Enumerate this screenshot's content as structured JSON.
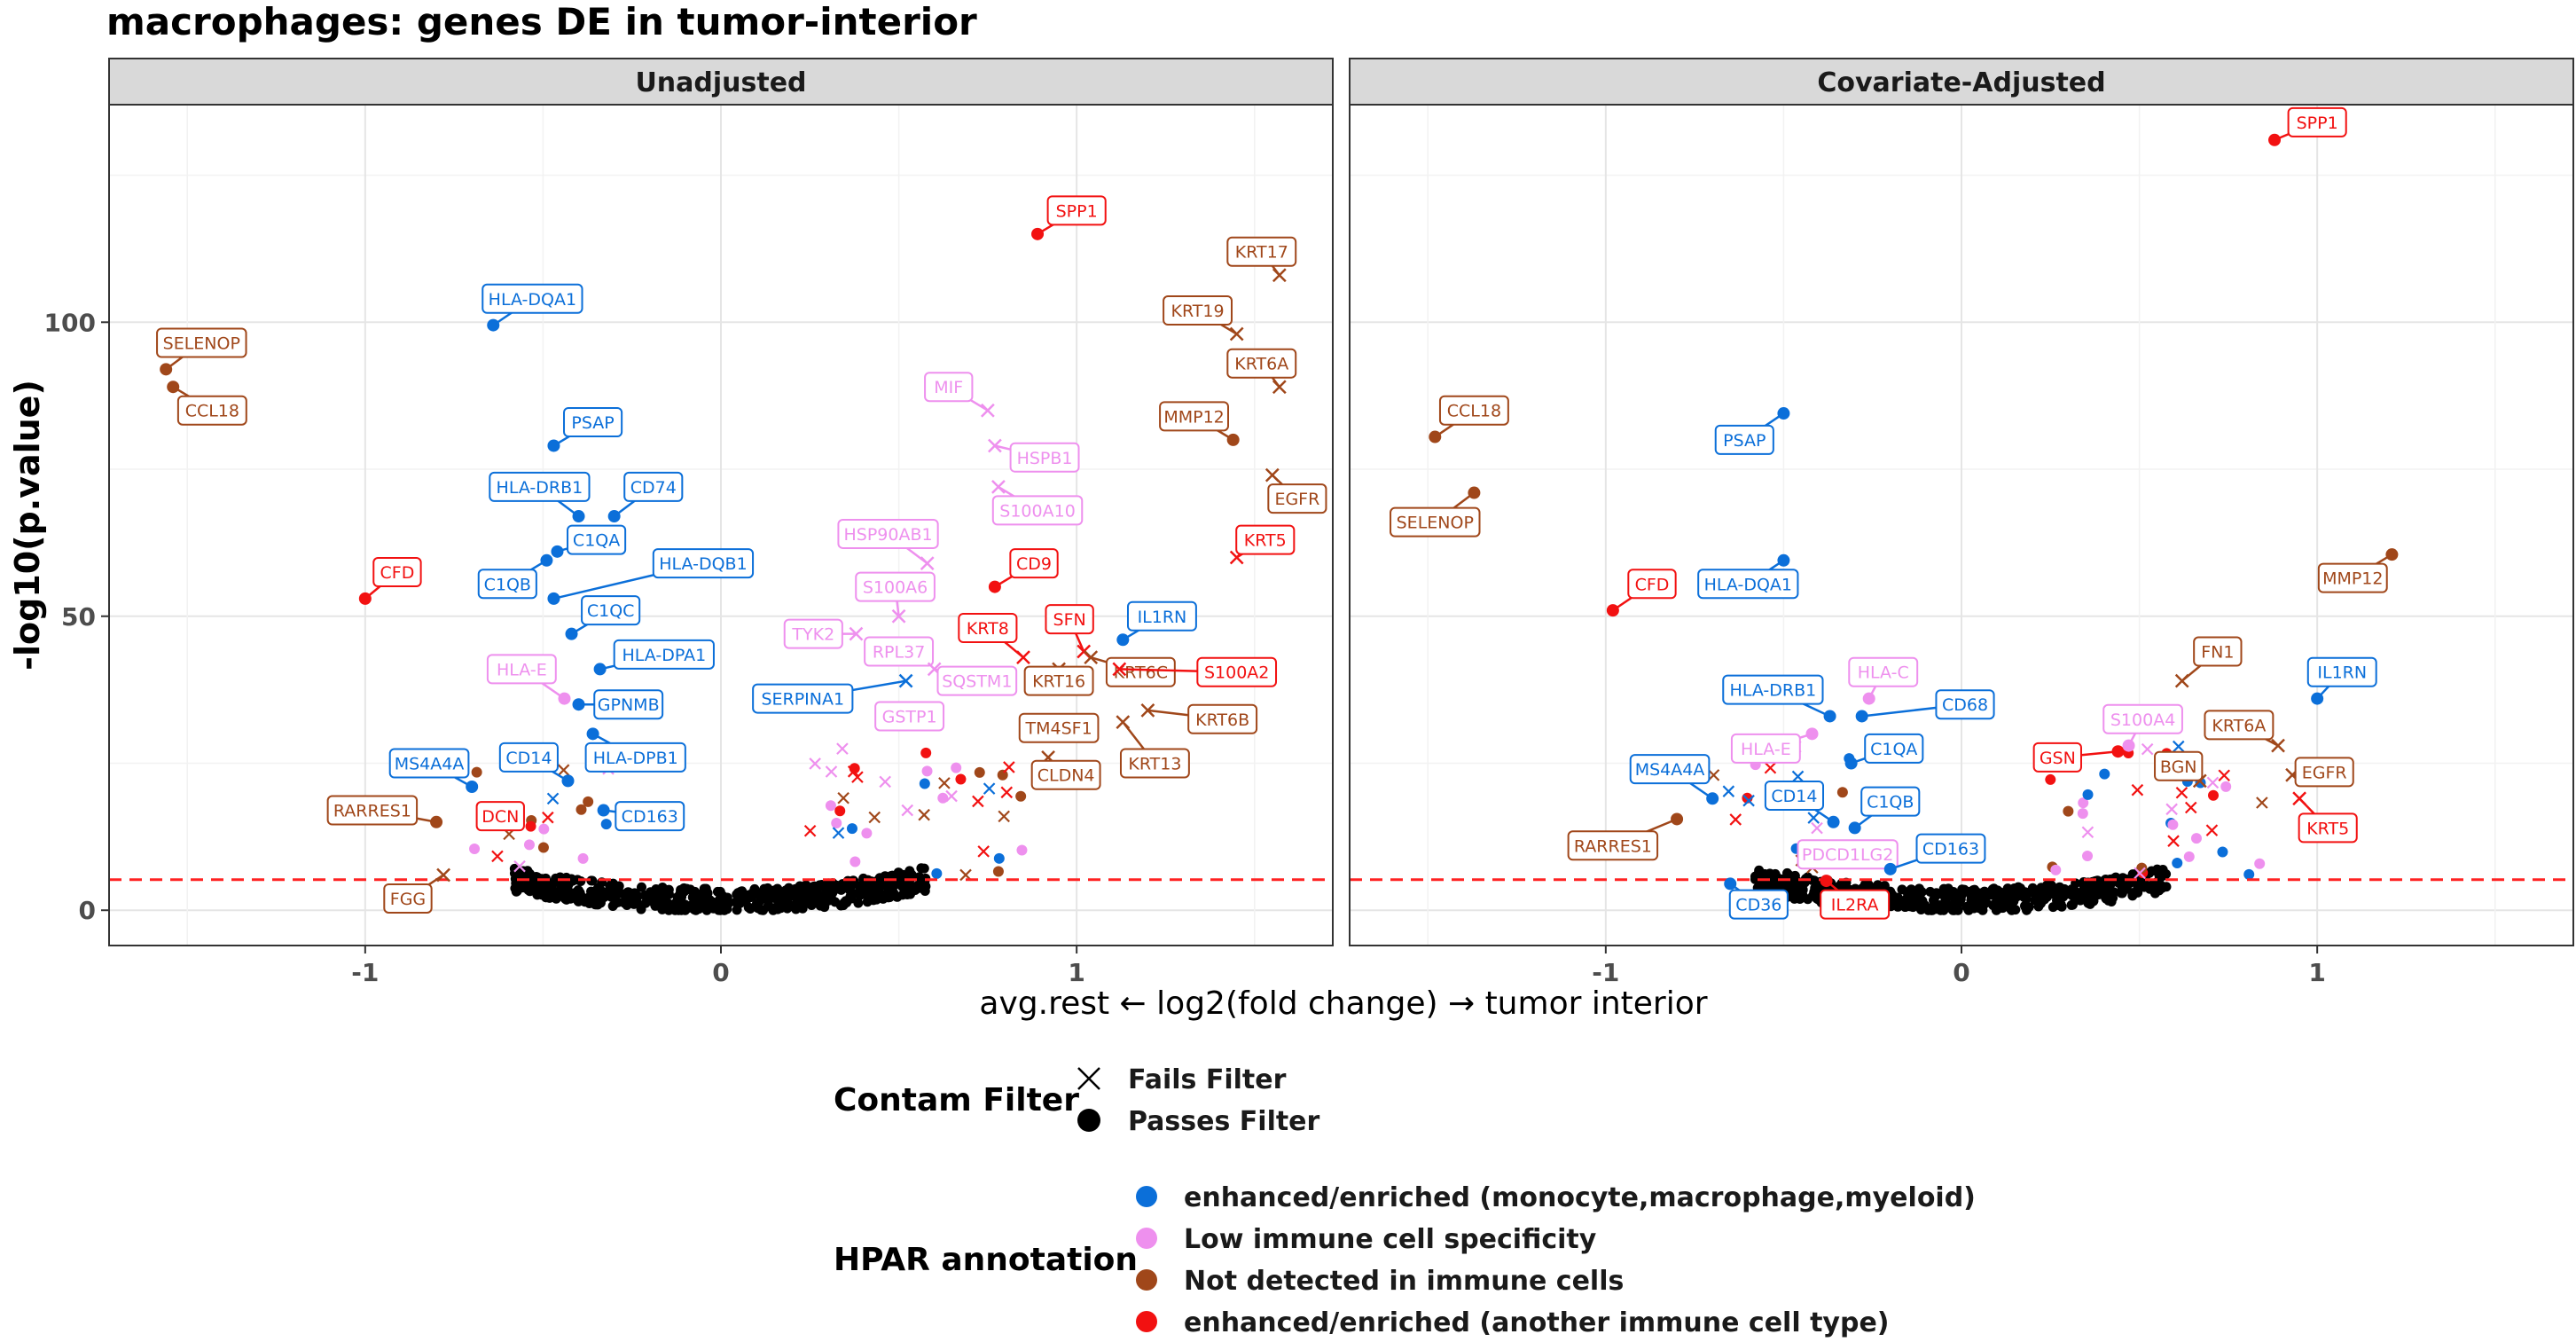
{
  "chart_data": {
    "type": "scatter",
    "title": "macrophages: genes DE in tumor-interior",
    "xlabel": "avg.rest ← log2(fold change) → tumor interior",
    "ylabel": "-log10(p.value)",
    "xlim": [
      -1.72,
      1.72
    ],
    "ylim": [
      -6,
      137
    ],
    "x_ticks": [
      -1,
      0,
      1
    ],
    "x_tick_labels": [
      "-1",
      "0",
      "1"
    ],
    "y_ticks": [
      0,
      50,
      100
    ],
    "y_tick_labels": [
      "0",
      "50",
      "100"
    ],
    "threshold_y": 5.2,
    "grid": true,
    "legend": {
      "position": "bottom",
      "shape_title": "Contam Filter",
      "shape_items": [
        {
          "key": "fails",
          "label": "Fails Filter"
        },
        {
          "key": "passes",
          "label": "Passes Filter"
        }
      ],
      "color_title": "HPAR annotation",
      "color_items": [
        {
          "key": "enh_mono",
          "label": "enhanced/enriched (monocyte,macrophage,myeloid)",
          "color": "#0B6FD9"
        },
        {
          "key": "low",
          "label": "Low immune cell specificity",
          "color": "#EE90EE"
        },
        {
          "key": "notdet",
          "label": "Not detected in immune cells",
          "color": "#A0471A"
        },
        {
          "key": "enh_other",
          "label": "enhanced/enriched (another immune cell type)",
          "color": "#F21111"
        }
      ]
    },
    "panels": [
      {
        "title": "Unadjusted",
        "points": [
          {
            "gene": "SELENOP",
            "x": -1.56,
            "y": 92,
            "c": "notdet",
            "s": "passes",
            "lx": -1.46,
            "ly": 96.5
          },
          {
            "gene": "CCL18",
            "x": -1.54,
            "y": 89,
            "c": "notdet",
            "s": "passes",
            "lx": -1.43,
            "ly": 85
          },
          {
            "gene": "CFD",
            "x": -1.0,
            "y": 53,
            "c": "enh_other",
            "s": "passes",
            "lx": -0.91,
            "ly": 57.5
          },
          {
            "gene": "RARRES1",
            "x": -0.8,
            "y": 15,
            "c": "notdet",
            "s": "passes",
            "lx": -0.98,
            "ly": 17
          },
          {
            "gene": "FGG",
            "x": -0.78,
            "y": 6,
            "c": "notdet",
            "s": "fails",
            "lx": -0.88,
            "ly": 2
          },
          {
            "gene": "MS4A4A",
            "x": -0.7,
            "y": 21,
            "c": "enh_mono",
            "s": "passes",
            "lx": -0.82,
            "ly": 25
          },
          {
            "gene": "DCN",
            "x": -0.6,
            "y": 16,
            "c": "enh_other",
            "s": "fails",
            "lx": -0.62,
            "ly": 16
          },
          {
            "gene": "HLA-DQA1",
            "x": -0.64,
            "y": 99.5,
            "c": "enh_mono",
            "s": "passes",
            "lx": -0.53,
            "ly": 104
          },
          {
            "gene": "PSAP",
            "x": -0.47,
            "y": 79,
            "c": "enh_mono",
            "s": "passes",
            "lx": -0.36,
            "ly": 83
          },
          {
            "gene": "HLA-DRB1",
            "x": -0.4,
            "y": 67,
            "c": "enh_mono",
            "s": "passes",
            "lx": -0.51,
            "ly": 72
          },
          {
            "gene": "CD74",
            "x": -0.3,
            "y": 67,
            "c": "enh_mono",
            "s": "passes",
            "lx": -0.19,
            "ly": 72
          },
          {
            "gene": "C1QA",
            "x": -0.46,
            "y": 61,
            "c": "enh_mono",
            "s": "passes",
            "lx": -0.35,
            "ly": 63
          },
          {
            "gene": "C1QB",
            "x": -0.49,
            "y": 59.5,
            "c": "enh_mono",
            "s": "passes",
            "lx": -0.6,
            "ly": 55.5
          },
          {
            "gene": "HLA-DQB1",
            "x": -0.47,
            "y": 53,
            "c": "enh_mono",
            "s": "passes",
            "lx": -0.05,
            "ly": 59
          },
          {
            "gene": "C1QC",
            "x": -0.42,
            "y": 47,
            "c": "enh_mono",
            "s": "passes",
            "lx": -0.31,
            "ly": 51
          },
          {
            "gene": "HLA-DPA1",
            "x": -0.34,
            "y": 41,
            "c": "enh_mono",
            "s": "passes",
            "lx": -0.16,
            "ly": 43.5
          },
          {
            "gene": "HLA-E",
            "x": -0.44,
            "y": 36,
            "c": "low",
            "s": "passes",
            "lx": -0.56,
            "ly": 41
          },
          {
            "gene": "GPNMB",
            "x": -0.4,
            "y": 35,
            "c": "enh_mono",
            "s": "passes",
            "lx": -0.26,
            "ly": 35
          },
          {
            "gene": "CD14",
            "x": -0.43,
            "y": 22,
            "c": "enh_mono",
            "s": "passes",
            "lx": -0.54,
            "ly": 26
          },
          {
            "gene": "HLA-DPB1",
            "x": -0.36,
            "y": 30,
            "c": "enh_mono",
            "s": "passes",
            "lx": -0.24,
            "ly": 26
          },
          {
            "gene": "CD163",
            "x": -0.33,
            "y": 17,
            "c": "enh_mono",
            "s": "passes",
            "lx": -0.2,
            "ly": 16
          },
          {
            "gene": "SPP1",
            "x": 0.89,
            "y": 115,
            "c": "enh_other",
            "s": "passes",
            "lx": 1.0,
            "ly": 119
          },
          {
            "gene": "MIF",
            "x": 0.75,
            "y": 85,
            "c": "low",
            "s": "fails",
            "lx": 0.64,
            "ly": 89
          },
          {
            "gene": "HSPB1",
            "x": 0.77,
            "y": 79,
            "c": "low",
            "s": "fails",
            "lx": 0.91,
            "ly": 77
          },
          {
            "gene": "S100A10",
            "x": 0.78,
            "y": 72,
            "c": "low",
            "s": "fails",
            "lx": 0.89,
            "ly": 68
          },
          {
            "gene": "HSP90AB1",
            "x": 0.58,
            "y": 59,
            "c": "low",
            "s": "fails",
            "lx": 0.47,
            "ly": 64
          },
          {
            "gene": "CD9",
            "x": 0.77,
            "y": 55,
            "c": "enh_other",
            "s": "passes",
            "lx": 0.88,
            "ly": 59
          },
          {
            "gene": "S100A6",
            "x": 0.5,
            "y": 50,
            "c": "low",
            "s": "fails",
            "lx": 0.49,
            "ly": 55
          },
          {
            "gene": "TYK2",
            "x": 0.38,
            "y": 47,
            "c": "low",
            "s": "fails",
            "lx": 0.26,
            "ly": 47
          },
          {
            "gene": "RPL37",
            "x": 0.47,
            "y": 44,
            "c": "low",
            "s": "fails",
            "lx": 0.5,
            "ly": 44
          },
          {
            "gene": "KRT8",
            "x": 0.85,
            "y": 43,
            "c": "enh_other",
            "s": "fails",
            "lx": 0.75,
            "ly": 48
          },
          {
            "gene": "SFN",
            "x": 1.02,
            "y": 44,
            "c": "enh_other",
            "s": "fails",
            "lx": 0.98,
            "ly": 49.5
          },
          {
            "gene": "SQSTM1",
            "x": 0.6,
            "y": 41,
            "c": "low",
            "s": "fails",
            "lx": 0.72,
            "ly": 39
          },
          {
            "gene": "KRT16",
            "x": 0.95,
            "y": 41,
            "c": "notdet",
            "s": "fails",
            "lx": 0.95,
            "ly": 39
          },
          {
            "gene": "KRT6C",
            "x": 1.04,
            "y": 43,
            "c": "notdet",
            "s": "fails",
            "lx": 1.18,
            "ly": 40.5
          },
          {
            "gene": "S100A2",
            "x": 1.12,
            "y": 41,
            "c": "enh_other",
            "s": "fails",
            "lx": 1.45,
            "ly": 40.5
          },
          {
            "gene": "IL1RN",
            "x": 1.13,
            "y": 46,
            "c": "enh_mono",
            "s": "passes",
            "lx": 1.24,
            "ly": 50
          },
          {
            "gene": "SERPINA1",
            "x": 0.52,
            "y": 39,
            "c": "enh_mono",
            "s": "fails",
            "lx": 0.23,
            "ly": 36
          },
          {
            "gene": "GSTP1",
            "x": 0.52,
            "y": 32,
            "c": "low",
            "s": "fails",
            "lx": 0.53,
            "ly": 33
          },
          {
            "gene": "TM4SF1",
            "x": 0.88,
            "y": 30,
            "c": "notdet",
            "s": "fails",
            "lx": 0.95,
            "ly": 31
          },
          {
            "gene": "KRT6B",
            "x": 1.2,
            "y": 34,
            "c": "notdet",
            "s": "fails",
            "lx": 1.41,
            "ly": 32.5
          },
          {
            "gene": "KRT13",
            "x": 1.13,
            "y": 32,
            "c": "notdet",
            "s": "fails",
            "lx": 1.22,
            "ly": 25
          },
          {
            "gene": "CLDN4",
            "x": 0.92,
            "y": 26,
            "c": "notdet",
            "s": "fails",
            "lx": 0.97,
            "ly": 23
          },
          {
            "gene": "KRT17",
            "x": 1.57,
            "y": 108,
            "c": "notdet",
            "s": "fails",
            "lx": 1.52,
            "ly": 112
          },
          {
            "gene": "KRT19",
            "x": 1.45,
            "y": 98,
            "c": "notdet",
            "s": "fails",
            "lx": 1.34,
            "ly": 102
          },
          {
            "gene": "KRT6A",
            "x": 1.57,
            "y": 89,
            "c": "notdet",
            "s": "fails",
            "lx": 1.52,
            "ly": 93
          },
          {
            "gene": "MMP12",
            "x": 1.44,
            "y": 80,
            "c": "notdet",
            "s": "passes",
            "lx": 1.33,
            "ly": 84
          },
          {
            "gene": "EGFR",
            "x": 1.55,
            "y": 74,
            "c": "notdet",
            "s": "fails",
            "lx": 1.62,
            "ly": 70
          },
          {
            "gene": "KRT5",
            "x": 1.45,
            "y": 60,
            "c": "enh_other",
            "s": "fails",
            "lx": 1.53,
            "ly": 63
          }
        ]
      },
      {
        "title": "Covariate-Adjusted",
        "points": [
          {
            "gene": "SPP1",
            "x": 0.88,
            "y": 131,
            "c": "enh_other",
            "s": "passes",
            "lx": 1.0,
            "ly": 134
          },
          {
            "gene": "CCL18",
            "x": -1.48,
            "y": 80.5,
            "c": "notdet",
            "s": "passes",
            "lx": -1.37,
            "ly": 85
          },
          {
            "gene": "SELENOP",
            "x": -1.37,
            "y": 71,
            "c": "notdet",
            "s": "passes",
            "lx": -1.48,
            "ly": 66
          },
          {
            "gene": "PSAP",
            "x": -0.5,
            "y": 84.5,
            "c": "enh_mono",
            "s": "passes",
            "lx": -0.61,
            "ly": 80
          },
          {
            "gene": "HLA-DQA1",
            "x": -0.5,
            "y": 59.5,
            "c": "enh_mono",
            "s": "passes",
            "lx": -0.6,
            "ly": 55.5
          },
          {
            "gene": "CFD",
            "x": -0.98,
            "y": 51,
            "c": "enh_other",
            "s": "passes",
            "lx": -0.87,
            "ly": 55.5
          },
          {
            "gene": "HLA-DRB1",
            "x": -0.37,
            "y": 33,
            "c": "enh_mono",
            "s": "passes",
            "lx": -0.53,
            "ly": 37.5
          },
          {
            "gene": "HLA-C",
            "x": -0.26,
            "y": 36,
            "c": "low",
            "s": "passes",
            "lx": -0.22,
            "ly": 40.5
          },
          {
            "gene": "CD68",
            "x": -0.28,
            "y": 33,
            "c": "enh_mono",
            "s": "passes",
            "lx": 0.01,
            "ly": 35
          },
          {
            "gene": "HLA-E",
            "x": -0.42,
            "y": 30,
            "c": "low",
            "s": "passes",
            "lx": -0.55,
            "ly": 27.5
          },
          {
            "gene": "C1QA",
            "x": -0.31,
            "y": 25,
            "c": "enh_mono",
            "s": "passes",
            "lx": -0.19,
            "ly": 27.5
          },
          {
            "gene": "MS4A4A",
            "x": -0.7,
            "y": 19,
            "c": "enh_mono",
            "s": "passes",
            "lx": -0.82,
            "ly": 24
          },
          {
            "gene": "CD14",
            "x": -0.36,
            "y": 15,
            "c": "enh_mono",
            "s": "passes",
            "lx": -0.47,
            "ly": 19.5
          },
          {
            "gene": "C1QB",
            "x": -0.3,
            "y": 14,
            "c": "enh_mono",
            "s": "passes",
            "lx": -0.2,
            "ly": 18.5
          },
          {
            "gene": "RARRES1",
            "x": -0.8,
            "y": 15.5,
            "c": "notdet",
            "s": "passes",
            "lx": -0.98,
            "ly": 11
          },
          {
            "gene": "PDCD1LG2",
            "x": -0.4,
            "y": 8,
            "c": "low",
            "s": "passes",
            "lx": -0.32,
            "ly": 9.5
          },
          {
            "gene": "CD163",
            "x": -0.2,
            "y": 7,
            "c": "enh_mono",
            "s": "passes",
            "lx": -0.03,
            "ly": 10.5
          },
          {
            "gene": "CD36",
            "x": -0.65,
            "y": 4.5,
            "c": "enh_mono",
            "s": "passes",
            "lx": -0.57,
            "ly": 1
          },
          {
            "gene": "IL2RA",
            "x": -0.38,
            "y": 5,
            "c": "enh_other",
            "s": "passes",
            "lx": -0.3,
            "ly": 1
          },
          {
            "gene": "GSN",
            "x": 0.44,
            "y": 27,
            "c": "enh_other",
            "s": "passes",
            "lx": 0.27,
            "ly": 26
          },
          {
            "gene": "S100A4",
            "x": 0.47,
            "y": 28,
            "c": "low",
            "s": "passes",
            "lx": 0.51,
            "ly": 32.5
          },
          {
            "gene": "BGN",
            "x": 0.67,
            "y": 22,
            "c": "notdet",
            "s": "fails",
            "lx": 0.61,
            "ly": 24.5
          },
          {
            "gene": "FN1",
            "x": 0.62,
            "y": 39,
            "c": "notdet",
            "s": "fails",
            "lx": 0.72,
            "ly": 44
          },
          {
            "gene": "KRT6A",
            "x": 0.89,
            "y": 28,
            "c": "notdet",
            "s": "fails",
            "lx": 0.78,
            "ly": 31.5
          },
          {
            "gene": "EGFR",
            "x": 0.93,
            "y": 23,
            "c": "notdet",
            "s": "fails",
            "lx": 1.02,
            "ly": 23.5
          },
          {
            "gene": "KRT5",
            "x": 0.95,
            "y": 19,
            "c": "enh_other",
            "s": "fails",
            "lx": 1.03,
            "ly": 14
          },
          {
            "gene": "IL1RN",
            "x": 1.0,
            "y": 36,
            "c": "enh_mono",
            "s": "passes",
            "lx": 1.07,
            "ly": 40.5
          },
          {
            "gene": "MMP12",
            "x": 1.21,
            "y": 60.5,
            "c": "notdet",
            "s": "passes",
            "lx": 1.1,
            "ly": 56.5
          }
        ]
      }
    ]
  }
}
